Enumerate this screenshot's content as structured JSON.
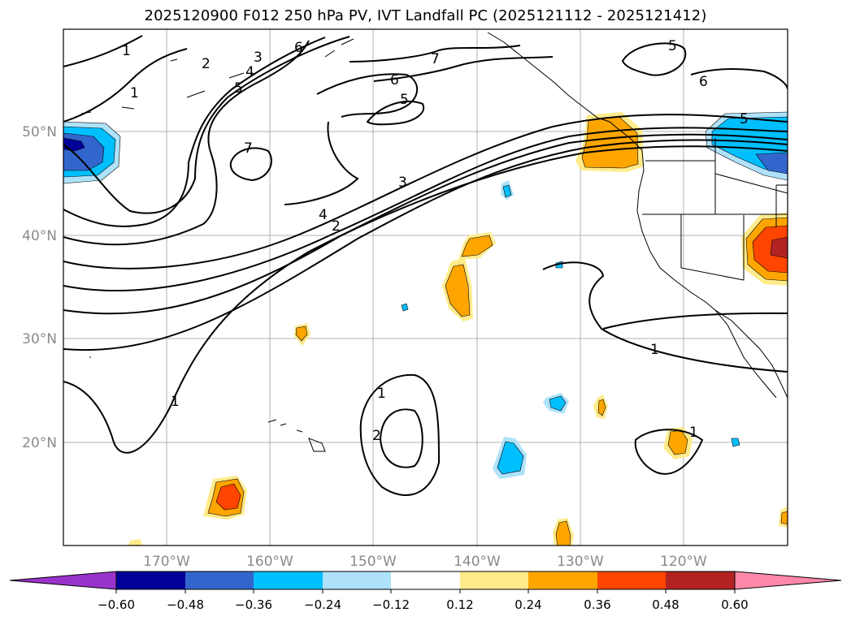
{
  "title": "2025120900 F012 250 hPa PV, IVT Landfall PC (2025121112 - 2025121412)",
  "map": {
    "lon_labels": [
      "170°W",
      "160°W",
      "150°W",
      "140°W",
      "130°W",
      "120°W"
    ],
    "lat_labels": [
      "50°N",
      "40°N",
      "30°N",
      "20°N"
    ],
    "contour_labels": [
      {
        "text": "1",
        "where": "upper-left"
      },
      {
        "text": "1",
        "where": "upper-left"
      },
      {
        "text": "2",
        "where": "upper-left"
      },
      {
        "text": "3",
        "where": "upper-left"
      },
      {
        "text": "4",
        "where": "upper-left"
      },
      {
        "text": "5",
        "where": "upper-left"
      },
      {
        "text": "6",
        "where": "upper-left"
      },
      {
        "text": "7",
        "where": "top-center"
      },
      {
        "text": "6",
        "where": "top-center"
      },
      {
        "text": "5",
        "where": "top-center"
      },
      {
        "text": "7",
        "where": "center-left"
      },
      {
        "text": "3",
        "where": "jet-center"
      },
      {
        "text": "4",
        "where": "jet-center"
      },
      {
        "text": "2",
        "where": "jet-center"
      },
      {
        "text": "5",
        "where": "top-right"
      },
      {
        "text": "6",
        "where": "top-right"
      },
      {
        "text": "5",
        "where": "right-edge"
      },
      {
        "text": "1",
        "where": "center-right"
      },
      {
        "text": "1",
        "where": "lower-left"
      },
      {
        "text": "1",
        "where": "lower-center"
      },
      {
        "text": "2",
        "where": "lower-center"
      },
      {
        "text": "1",
        "where": "lower-right"
      }
    ]
  },
  "colorbar": {
    "tick_labels": [
      "−0.60",
      "−0.48",
      "−0.36",
      "−0.24",
      "−0.12",
      "0.12",
      "0.24",
      "0.36",
      "0.48",
      "0.60"
    ],
    "colors": [
      "#9933cc",
      "#000099",
      "#3366cc",
      "#00bfff",
      "#aee2fa",
      "#ffffff",
      "#ffeb8a",
      "#ffa500",
      "#ff4500",
      "#b22222",
      "#ff88aa"
    ]
  }
}
